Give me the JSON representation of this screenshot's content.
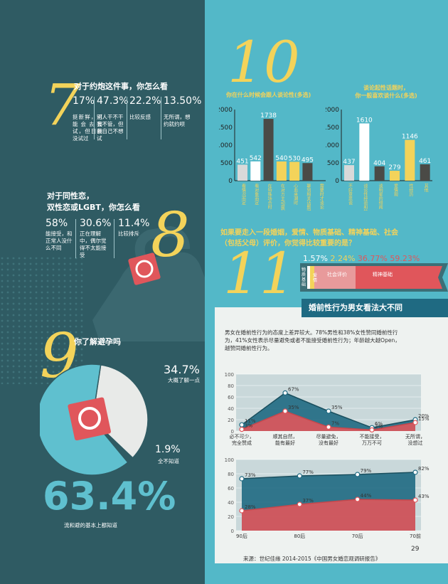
{
  "colors": {
    "left_bg": "#2f5b63",
    "right_bg": "#53b8c8",
    "accent_yellow": "#f3d35a",
    "accent_red": "#e0565b",
    "dark_bar": "#4a4a46",
    "light_bar": "#d9d9d9"
  },
  "section7": {
    "number": "7",
    "title": "对于约炮这件事，你怎么看",
    "items": [
      {
        "pct": "17%",
        "desc": "挺新鲜，可能会去尝试，但目前没试过"
      },
      {
        "pct": "47.3%",
        "desc": "别人干不干我不管，但我自己不想试"
      },
      {
        "pct": "22.2%",
        "desc": "比较反感"
      },
      {
        "pct": "13.50%",
        "desc": "无所谓，想约就约呗"
      }
    ]
  },
  "section8": {
    "number": "8",
    "title_line1": "对于同性恋，",
    "title_line2": "双性恋或LGBT，你怎么看",
    "items": [
      {
        "pct": "58%",
        "desc": "能接受，和正常人没什么不同"
      },
      {
        "pct": "30.6%",
        "desc": "正在理解中，偶尔觉得不太能接受"
      },
      {
        "pct": "11.4%",
        "desc": "比较排斥"
      }
    ]
  },
  "section9": {
    "number": "9",
    "title": "你了解避孕吗",
    "slices": [
      {
        "pct": "34.7%",
        "label": "大概了解一点",
        "value": 34.7
      },
      {
        "pct": "1.9%",
        "label": "全不知道",
        "value": 1.9
      },
      {
        "pct": "63.4%",
        "label": "流和避的基本上都知道",
        "value": 63.4
      }
    ]
  },
  "section10": {
    "number": "10",
    "chart1_title": "你在什么时候会跟人谈论性(多选)",
    "chart2_title_line1": "谈论起性话题时，",
    "chart2_title_line2": "你一般喜欢谈什么(多选)"
  },
  "section11": {
    "number": "11",
    "question_line1": "如果要走入一段婚姻，爱情、物质基础、精神基础、社会",
    "question_line2": "（包括父母）评价，你觉得比较重要的是？",
    "values": [
      {
        "pct": "1.57%",
        "label": "物质基础"
      },
      {
        "pct": "2.24%",
        "label": "爱情"
      },
      {
        "pct": "36.77%",
        "label": "社会评价"
      },
      {
        "pct": "59.23%",
        "label": "精神基础"
      }
    ]
  },
  "premarital": {
    "title": "婚前性行为男女看法大不同",
    "text": "男女在婚前性行为的态度上差异较大。78%男性和38%女性赞同婚前性行为，41%女性表示尽量避免或者不能接受婚前性行为；年龄越大越Open，越赞同婚前性行为。",
    "source": "来源：世纪佳缘 2014-2015《中国男女婚恋观调研报告》",
    "page_number": "29"
  },
  "chart_data": [
    {
      "type": "bar",
      "title": "你在什么时候会跟人谈论性(多选)",
      "ylim": [
        0,
        2000
      ],
      "yticks": [
        "0",
        "500",
        "1000",
        "1500",
        "2000"
      ],
      "categories": [
        "看情况而定",
        "看对象而定",
        "在特殊场合时",
        "在对方主动提起时",
        "心血来潮时",
        "聊到相关话题时",
        "需要时才谈论"
      ],
      "values": [
        451,
        542,
        1738,
        540,
        530,
        495,
        0
      ],
      "value_labels": [
        "451",
        "542",
        "1738",
        "540",
        "530",
        "495",
        ""
      ],
      "bar_colors": [
        "#d9d9d9",
        "#ffffff",
        "#4a4a46",
        "#f3d35a",
        "#f3d35a",
        "#4a4a46",
        "#4a4a46"
      ]
    },
    {
      "type": "bar",
      "title": "谈论起性话题时，你一般喜欢谈什么(多选)",
      "ylim": [
        0,
        2000
      ],
      "yticks": [
        "0",
        "500",
        "1000",
        "1500",
        "2000"
      ],
      "categories": [
        "不好意思谈",
        "谈论性经验和技巧",
        "谈明星的绯闻",
        "爱情观",
        "性经历",
        "其他"
      ],
      "values": [
        437,
        1610,
        404,
        279,
        1146,
        461
      ],
      "value_labels": [
        "437",
        "1610",
        "404",
        "279",
        "1146",
        "461"
      ],
      "bar_colors": [
        "#d9d9d9",
        "#ffffff",
        "#4a4a46",
        "#f3d35a",
        "#f3d35a",
        "#4a4a46"
      ]
    },
    {
      "type": "area",
      "ylim": [
        0,
        100
      ],
      "yticks": [
        "0",
        "20",
        "40",
        "60",
        "80",
        "100"
      ],
      "categories": [
        "必不可少，完全赞成",
        "顺其自然，能有最好",
        "尽量避免，没有最好",
        "不能接受，万万不可",
        "无所谓，没想过"
      ],
      "series": [
        {
          "name": "",
          "values": [
            11,
            67,
            35,
            6,
            20
          ],
          "labels": [
            "11%",
            "67%",
            "35%",
            "6%",
            "20%"
          ],
          "color": "#1f6a82"
        },
        {
          "name": "",
          "values": [
            3,
            35,
            7,
            2,
            15
          ],
          "labels": [
            "3%",
            "35%",
            "7%",
            "2%",
            "15%"
          ],
          "color": "#e0565b"
        }
      ]
    },
    {
      "type": "area",
      "ylim": [
        0,
        100
      ],
      "yticks": [
        "0",
        "20",
        "40",
        "60",
        "80",
        "100"
      ],
      "categories": [
        "90后",
        "80后",
        "70后",
        "70前"
      ],
      "series": [
        {
          "name": "",
          "values": [
            73,
            77,
            79,
            82
          ],
          "labels": [
            "73%",
            "77%",
            "79%",
            "82%"
          ],
          "color": "#1f6a82"
        },
        {
          "name": "",
          "values": [
            28,
            37,
            44,
            43
          ],
          "labels": [
            "28%",
            "37%",
            "44%",
            "43%"
          ],
          "color": "#e0565b"
        }
      ]
    }
  ]
}
